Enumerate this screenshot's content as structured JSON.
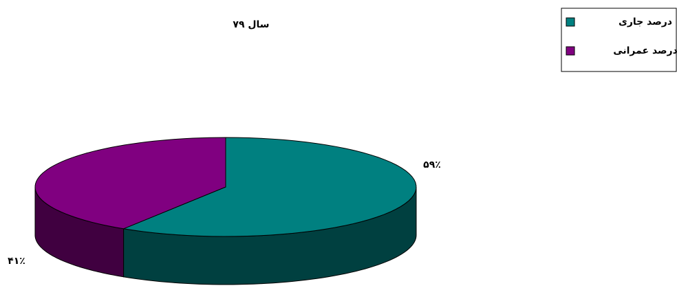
{
  "chart_data": {
    "type": "pie3d",
    "subtitle": "سال ۷۹",
    "categories": [
      "درصد جاری",
      "درصد عمرانی"
    ],
    "values": [
      59,
      41
    ],
    "value_labels": [
      "۵۹٪",
      "۴۱٪"
    ],
    "colors": [
      "#008080",
      "#800080"
    ],
    "legend": "top-right"
  }
}
